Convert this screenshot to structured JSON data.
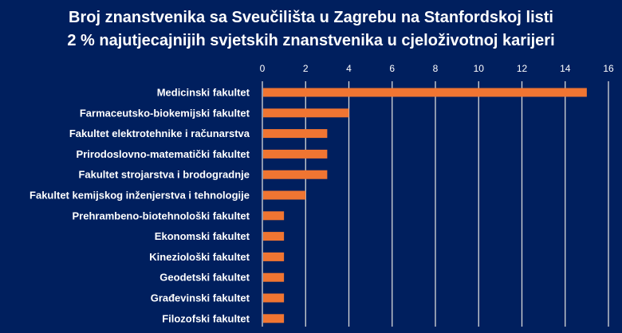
{
  "chart_data": {
    "type": "bar",
    "orientation": "horizontal",
    "title": "Broj znanstvenika sa Sveučilišta u Zagrebu na Stanfordskoj listi",
    "subtitle": "2 % najutjecajnijih svjetskih znanstvenika u cjeloživotnoj karijeri",
    "categories": [
      "Medicinski fakultet",
      "Farmaceutsko-biokemijski fakultet",
      "Fakultet elektrotehnike i računarstva",
      "Prirodoslovno-matematički fakultet",
      "Fakultet strojarstva i brodogradnje",
      "Fakultet kemijskog inženjerstva i tehnologije",
      "Prehrambeno-biotehnološki fakultet",
      "Ekonomski fakultet",
      "Kineziološki fakultet",
      "Geodetski fakultet",
      "Građevinski fakultet",
      "Filozofski fakultet"
    ],
    "values": [
      15,
      4,
      3,
      3,
      3,
      2,
      1,
      1,
      1,
      1,
      1,
      1
    ],
    "xlim": [
      0,
      16
    ],
    "xticks": [
      "0",
      "2",
      "4",
      "6",
      "8",
      "10",
      "12",
      "14",
      "16"
    ],
    "axis_position": "top",
    "grid": true,
    "colors": {
      "background": "#001f5e",
      "bar": "#f07532",
      "text": "#ffffff",
      "grid": "#d9d9d9"
    }
  }
}
